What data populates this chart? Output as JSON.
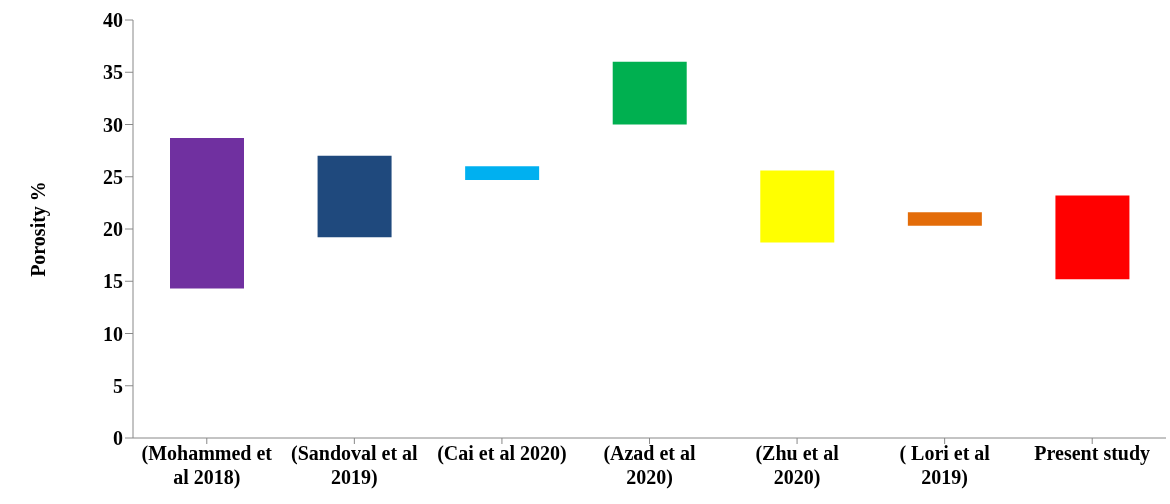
{
  "chart_data": {
    "type": "bar",
    "ylabel": "Porosity %",
    "categories": [
      "(Mohammed et al 2018)",
      "(Sandoval et al 2019)",
      "(Cai et al 2020)",
      "(Azad et al 2020)",
      "(Zhu et al 2020)",
      "( Lori et al 2019)",
      "Present study"
    ],
    "base": [
      14.3,
      19.2,
      24.7,
      30,
      18.7,
      20.3,
      15.2
    ],
    "values": [
      14.4,
      7.8,
      1.3,
      6,
      6.9,
      1.3,
      8.0
    ],
    "colors": [
      "#7030a0",
      "#1f497d",
      "#00b0f0",
      "#00b050",
      "#ffff00",
      "#e36c09",
      "#ff0000"
    ],
    "ylim": [
      0,
      40
    ],
    "yticks": [
      0,
      5,
      10,
      15,
      20,
      25,
      30,
      35,
      40
    ],
    "grid": false,
    "legend": false
  }
}
